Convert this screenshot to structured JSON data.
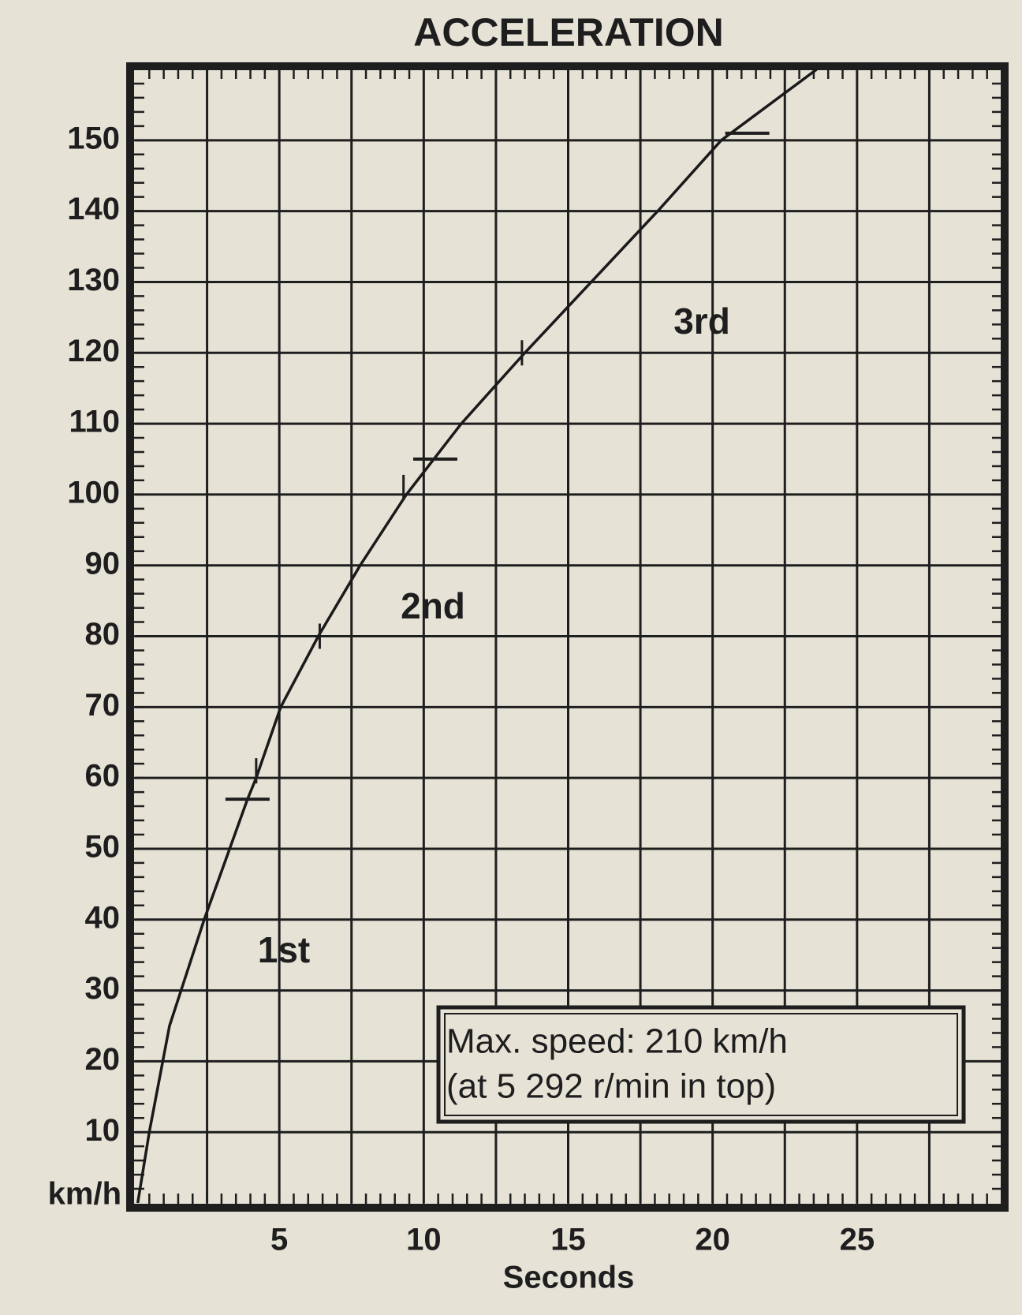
{
  "chart_data": {
    "type": "line",
    "title": "ACCELERATION",
    "xlabel": "Seconds",
    "ylabel": "km/h",
    "xlim": [
      0,
      30
    ],
    "ylim": [
      0,
      160
    ],
    "xticks": [
      5,
      10,
      15,
      20,
      25
    ],
    "yticks": [
      10,
      20,
      30,
      40,
      50,
      60,
      70,
      80,
      90,
      100,
      110,
      120,
      130,
      140,
      150
    ],
    "x_gridlines": [
      2.5,
      5,
      7.5,
      10,
      12.5,
      15,
      17.5,
      20,
      22.5,
      25,
      27.5
    ],
    "x_minor_step": 0.5,
    "y_minor_step": 2,
    "grid": true,
    "color": "#1a1a1a",
    "series": [
      {
        "name": "Acceleration",
        "x": [
          0.1,
          0.5,
          1.2,
          2.4,
          3.9,
          4.2,
          5.05,
          6.35,
          7.8,
          9.4,
          11.3,
          13.5,
          15.8,
          18.1,
          20.3,
          23.6
        ],
        "values": [
          0,
          10,
          25,
          40,
          57,
          60,
          70,
          80,
          90,
          100,
          110,
          120,
          130,
          140,
          150,
          160
        ]
      }
    ],
    "shift_marks": {
      "x": [
        3.9,
        10.4,
        21.2
      ],
      "y": [
        57,
        105,
        151
      ]
    },
    "time_marks": {
      "x": [
        4.2,
        6.4,
        9.3,
        13.4
      ],
      "y": [
        61,
        80,
        101,
        120
      ]
    },
    "annotations": [
      "1st",
      "2nd",
      "3rd"
    ],
    "note_lines": [
      "Max. speed: 210 km/h",
      "(at 5 292 r/min in top)"
    ]
  }
}
